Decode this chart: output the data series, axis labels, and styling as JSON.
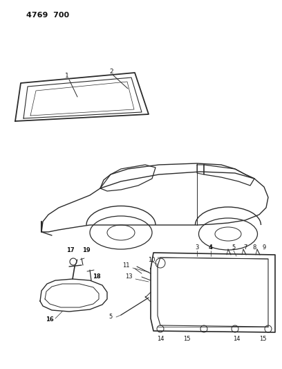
{
  "title": "4769  700",
  "bg_color": "#ffffff",
  "line_color": "#2a2a2a",
  "text_color": "#111111",
  "fig_width": 4.08,
  "fig_height": 5.33,
  "dpi": 100
}
